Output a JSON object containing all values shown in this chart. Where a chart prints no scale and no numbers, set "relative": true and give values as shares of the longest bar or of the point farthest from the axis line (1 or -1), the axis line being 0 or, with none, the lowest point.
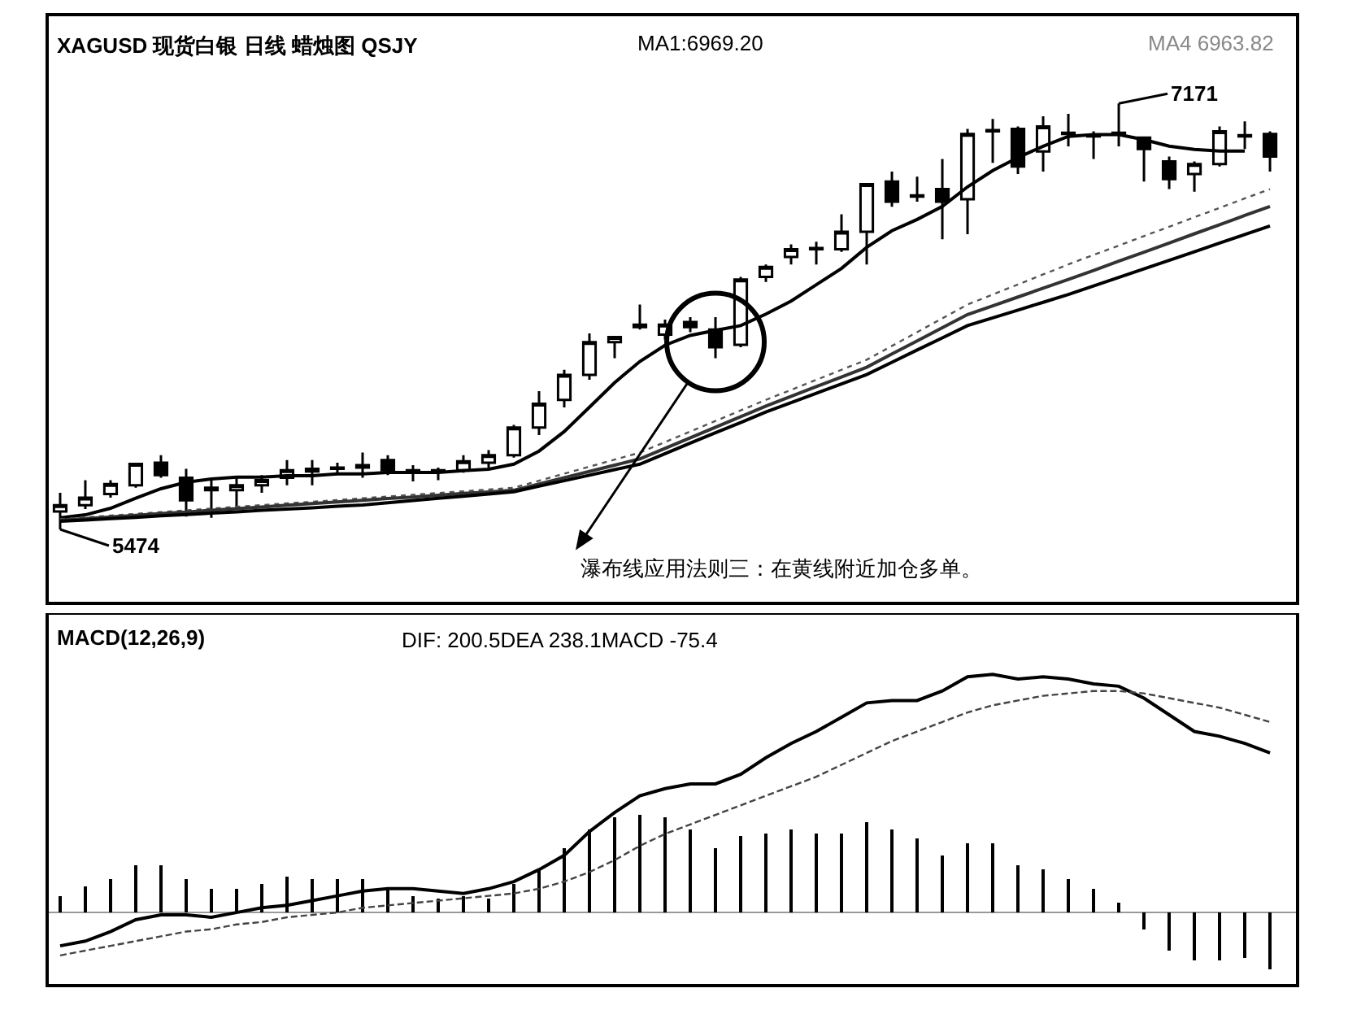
{
  "chart_data": [
    {
      "type": "candlestick",
      "title": "XAGUSD 现货白银 日线 蜡烛图 QSJY",
      "annotations": [
        "MA1:6969.20",
        "MA4 6963.82",
        "7171",
        "5474",
        "瀑布线应用法则三：在黄线附近加仓多单。"
      ],
      "categories": [
        null,
        null,
        null,
        null,
        null,
        null,
        null,
        null,
        null,
        null,
        null,
        null,
        null,
        null,
        null,
        null,
        null,
        null,
        null,
        null,
        null,
        null,
        null,
        null,
        null,
        null,
        null,
        null,
        null,
        null,
        null,
        null,
        null,
        null,
        null,
        null,
        null,
        null,
        null,
        null,
        null,
        null,
        null,
        null,
        null,
        null,
        null,
        null,
        null
      ],
      "ohlc": [
        [
          5545,
          5620,
          5474,
          5570
        ],
        [
          5570,
          5670,
          5555,
          5600
        ],
        [
          5615,
          5670,
          5600,
          5655
        ],
        [
          5650,
          5740,
          5640,
          5735
        ],
        [
          5740,
          5770,
          5680,
          5690
        ],
        [
          5680,
          5715,
          5525,
          5590
        ],
        [
          5640,
          5670,
          5520,
          5630
        ],
        [
          5630,
          5680,
          5560,
          5650
        ],
        [
          5650,
          5690,
          5620,
          5670
        ],
        [
          5680,
          5750,
          5650,
          5710
        ],
        [
          5705,
          5750,
          5650,
          5715
        ],
        [
          5715,
          5740,
          5690,
          5720
        ],
        [
          5720,
          5780,
          5680,
          5730
        ],
        [
          5750,
          5770,
          5690,
          5710
        ],
        [
          5710,
          5730,
          5665,
          5705
        ],
        [
          5705,
          5720,
          5670,
          5710
        ],
        [
          5710,
          5770,
          5700,
          5745
        ],
        [
          5740,
          5790,
          5720,
          5770
        ],
        [
          5770,
          5890,
          5760,
          5880
        ],
        [
          5880,
          6025,
          5850,
          5975
        ],
        [
          5990,
          6110,
          5960,
          6090
        ],
        [
          6090,
          6255,
          6070,
          6220
        ],
        [
          6220,
          6245,
          6156,
          6240
        ],
        [
          6280,
          6370,
          6270,
          6290
        ],
        [
          6250,
          6310,
          6230,
          6290
        ],
        [
          6300,
          6320,
          6260,
          6280
        ],
        [
          6270,
          6320,
          6156,
          6200
        ],
        [
          6210,
          6480,
          6200,
          6470
        ],
        [
          6480,
          6530,
          6460,
          6520
        ],
        [
          6560,
          6610,
          6530,
          6590
        ],
        [
          6590,
          6620,
          6530,
          6595
        ],
        [
          6590,
          6730,
          6580,
          6660
        ],
        [
          6660,
          6850,
          6530,
          6850
        ],
        [
          6860,
          6900,
          6760,
          6780
        ],
        [
          6800,
          6880,
          6780,
          6805
        ],
        [
          6830,
          6950,
          6630,
          6780
        ],
        [
          6790,
          7070,
          6650,
          7050
        ],
        [
          7060,
          7110,
          6935,
          7065
        ],
        [
          7070,
          7080,
          6890,
          6920
        ],
        [
          6980,
          7120,
          6900,
          7080
        ],
        [
          7050,
          7130,
          7000,
          7055
        ],
        [
          7040,
          7060,
          6950,
          7045
        ],
        [
          7050,
          7171,
          7000,
          7055
        ],
        [
          7035,
          7040,
          6860,
          6990
        ],
        [
          6940,
          6960,
          6830,
          6870
        ],
        [
          6890,
          6940,
          6820,
          6930
        ],
        [
          6930,
          7080,
          6920,
          7060
        ],
        [
          7040,
          7100,
          6990,
          7045
        ],
        [
          7050,
          7060,
          6900,
          6960
        ]
      ],
      "series": [
        {
          "type": "line",
          "color": "#000000",
          "line_style": "solid",
          "values": [
            5520,
            5532,
            5558,
            5598,
            5636,
            5662,
            5675,
            5682,
            5682,
            5688,
            5688,
            5695,
            5695,
            5701,
            5701,
            5701,
            5708,
            5714,
            5734,
            5786,
            5864,
            5961,
            6059,
            6143,
            6208,
            6247,
            6267,
            6286,
            6332,
            6384,
            6449,
            6514,
            6598,
            6664,
            6709,
            6761,
            6839,
            6904,
            6956,
            7001,
            7040,
            7047,
            7047,
            7027,
            7001,
            6988,
            6982,
            6982,
            null
          ]
        },
        {
          "type": "line",
          "color": "#555555",
          "line_style": "dotted",
          "values": [
            5515,
            5522,
            5529,
            5536,
            5543,
            5550,
            5557,
            5564,
            5571,
            5578,
            5584,
            5591,
            5598,
            5605,
            5612,
            5619,
            5626,
            5633,
            5640,
            5668,
            5696,
            5724,
            5752,
            5780,
            5822,
            5864,
            5906,
            5948,
            5990,
            6030,
            6070,
            6110,
            6150,
            6205,
            6260,
            6315,
            6370,
            6410,
            6450,
            6490,
            6530,
            6568,
            6605,
            6643,
            6680,
            6718,
            6755,
            6793,
            6830
          ]
        },
        {
          "type": "line",
          "color": "#333333",
          "line_style": "solid",
          "values": [
            5510,
            5517,
            5523,
            5530,
            5537,
            5543,
            5550,
            5557,
            5563,
            5570,
            5577,
            5583,
            5590,
            5597,
            5603,
            5610,
            5617,
            5623,
            5630,
            5655,
            5680,
            5705,
            5730,
            5755,
            5797,
            5839,
            5881,
            5923,
            5965,
            6004,
            6043,
            6081,
            6120,
            6173,
            6225,
            6278,
            6330,
            6365,
            6400,
            6435,
            6470,
            6506,
            6543,
            6579,
            6615,
            6652,
            6688,
            6725,
            6761
          ]
        },
        {
          "type": "line",
          "color": "#000000",
          "line_style": "solid",
          "values": [
            5506,
            5511,
            5517,
            5522,
            5528,
            5533,
            5539,
            5544,
            5550,
            5555,
            5560,
            5566,
            5571,
            5580,
            5589,
            5598,
            5606,
            5615,
            5624,
            5646,
            5668,
            5690,
            5712,
            5734,
            5776,
            5818,
            5859,
            5900,
            5942,
            5979,
            6016,
            6054,
            6091,
            6140,
            6189,
            6237,
            6286,
            6317,
            6348,
            6379,
            6410,
            6444,
            6478,
            6512,
            6546,
            6580,
            6615,
            6649,
            6683
          ]
        }
      ]
    },
    {
      "type": "line",
      "title": "MACD(12,26,9)",
      "relative": true,
      "annotations": [
        "DIF: 200.5DEA 238.1MACD -75.4"
      ],
      "categories": [
        null,
        null,
        null,
        null,
        null,
        null,
        null,
        null,
        null,
        null,
        null,
        null,
        null,
        null,
        null,
        null,
        null,
        null,
        null,
        null,
        null,
        null,
        null,
        null,
        null,
        null,
        null,
        null,
        null,
        null,
        null,
        null,
        null,
        null,
        null,
        null,
        null,
        null,
        null,
        null,
        null,
        null,
        null,
        null,
        null,
        null,
        null,
        null,
        null
      ],
      "series": [
        {
          "type": "bar",
          "color": "#000000",
          "values": [
            0.07,
            0.11,
            0.14,
            0.2,
            0.2,
            0.14,
            0.1,
            0.1,
            0.12,
            0.15,
            0.14,
            0.14,
            0.14,
            0.1,
            0.07,
            0.06,
            0.07,
            0.06,
            0.12,
            0.18,
            0.27,
            0.35,
            0.4,
            0.41,
            0.4,
            0.35,
            0.27,
            0.32,
            0.33,
            0.35,
            0.33,
            0.33,
            0.38,
            0.35,
            0.31,
            0.24,
            0.29,
            0.29,
            0.2,
            0.18,
            0.14,
            0.1,
            0.04,
            -0.07,
            -0.16,
            -0.2,
            -0.2,
            -0.19,
            -0.24
          ]
        },
        {
          "type": "line",
          "color": "#000000",
          "line_style": "solid",
          "values": [
            -0.14,
            -0.12,
            -0.08,
            -0.03,
            -0.01,
            -0.01,
            -0.02,
            0,
            0.02,
            0.03,
            0.05,
            0.07,
            0.09,
            0.1,
            0.1,
            0.09,
            0.08,
            0.1,
            0.13,
            0.18,
            0.24,
            0.34,
            0.42,
            0.49,
            0.52,
            0.54,
            0.54,
            0.58,
            0.65,
            0.71,
            0.76,
            0.82,
            0.88,
            0.89,
            0.89,
            0.93,
            0.99,
            1.0,
            0.98,
            0.99,
            0.98,
            0.96,
            0.95,
            0.9,
            0.83,
            0.76,
            0.74,
            0.71,
            0.67
          ]
        },
        {
          "type": "line",
          "color": "#444444",
          "line_style": "dashed",
          "values": [
            -0.18,
            -0.16,
            -0.14,
            -0.12,
            -0.1,
            -0.08,
            -0.07,
            -0.05,
            -0.04,
            -0.02,
            -0.01,
            0,
            0.02,
            0.03,
            0.04,
            0.05,
            0.06,
            0.07,
            0.08,
            0.1,
            0.13,
            0.17,
            0.22,
            0.28,
            0.33,
            0.37,
            0.41,
            0.45,
            0.49,
            0.53,
            0.57,
            0.62,
            0.67,
            0.72,
            0.76,
            0.8,
            0.84,
            0.87,
            0.89,
            0.91,
            0.92,
            0.93,
            0.93,
            0.92,
            0.9,
            0.88,
            0.86,
            0.83,
            0.8
          ]
        }
      ]
    }
  ]
}
